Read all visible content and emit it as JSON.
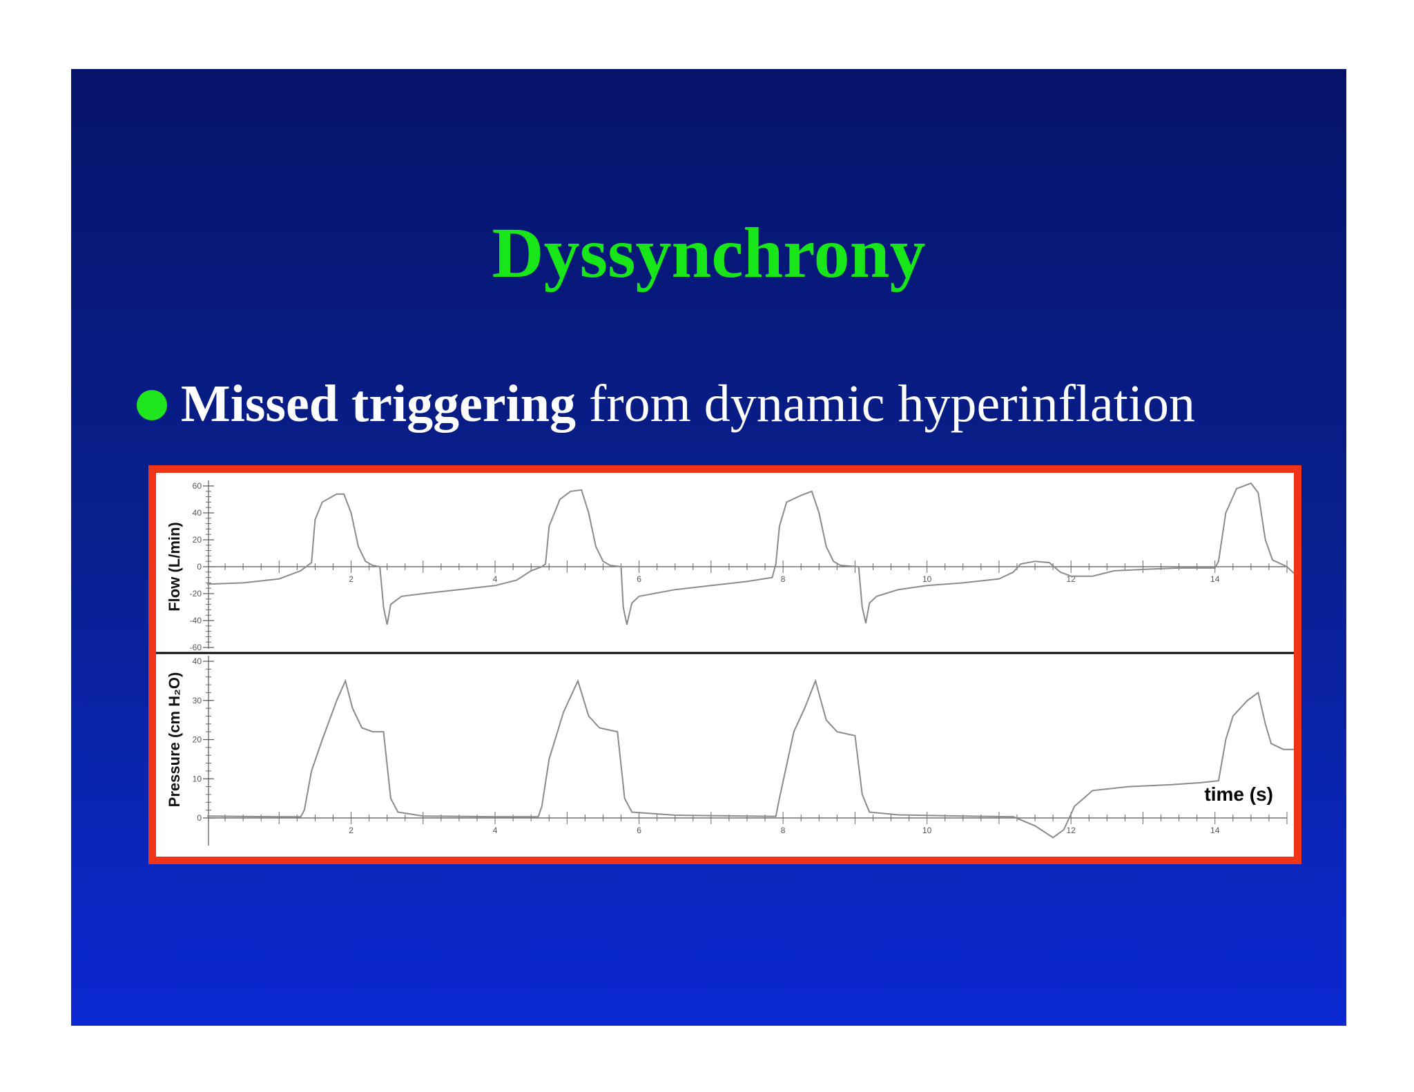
{
  "slide": {
    "title": "Dyssynchrony",
    "bullet": {
      "bold": "Missed triggering",
      "rest": " from dynamic hyperinflation"
    }
  },
  "colors": {
    "title": "#19e619",
    "bullet_dot": "#1fe61f",
    "frame_border": "#f03418",
    "trace": "#8a8a8a"
  },
  "chart_data": [
    {
      "type": "line",
      "ylabel": "Flow (L/min)",
      "ylim": [
        -60,
        60
      ],
      "xlim": [
        0,
        15
      ],
      "x_ticks": [
        "2",
        "4",
        "6",
        "8",
        "10",
        "12",
        "14"
      ],
      "y_ticks": [
        "60",
        "40",
        "20",
        "0",
        "-20",
        "-40",
        "-60"
      ],
      "series": [
        {
          "points": [
            [
              0.0,
              -13
            ],
            [
              0.5,
              -12
            ],
            [
              1.0,
              -9
            ],
            [
              1.3,
              -3
            ],
            [
              1.45,
              3
            ],
            [
              1.5,
              35
            ],
            [
              1.6,
              48
            ],
            [
              1.8,
              54
            ],
            [
              1.9,
              54
            ],
            [
              2.0,
              40
            ],
            [
              2.1,
              15
            ],
            [
              2.2,
              4
            ],
            [
              2.3,
              1
            ],
            [
              2.4,
              0
            ],
            [
              2.45,
              -30
            ],
            [
              2.5,
              -43
            ],
            [
              2.55,
              -28
            ],
            [
              2.7,
              -22
            ],
            [
              3.0,
              -20
            ],
            [
              3.5,
              -17
            ],
            [
              4.0,
              -14
            ],
            [
              4.3,
              -10
            ],
            [
              4.5,
              -3
            ],
            [
              4.65,
              0
            ],
            [
              4.7,
              2
            ],
            [
              4.75,
              30
            ],
            [
              4.9,
              50
            ],
            [
              5.05,
              56
            ],
            [
              5.2,
              57
            ],
            [
              5.3,
              40
            ],
            [
              5.4,
              15
            ],
            [
              5.5,
              4
            ],
            [
              5.6,
              1
            ],
            [
              5.75,
              0
            ],
            [
              5.78,
              -30
            ],
            [
              5.83,
              -43
            ],
            [
              5.9,
              -27
            ],
            [
              6.0,
              -22
            ],
            [
              6.5,
              -17
            ],
            [
              7.0,
              -14
            ],
            [
              7.5,
              -11
            ],
            [
              7.85,
              -8
            ],
            [
              7.9,
              2
            ],
            [
              7.95,
              30
            ],
            [
              8.05,
              48
            ],
            [
              8.25,
              53
            ],
            [
              8.4,
              56
            ],
            [
              8.5,
              40
            ],
            [
              8.6,
              15
            ],
            [
              8.7,
              4
            ],
            [
              8.8,
              1
            ],
            [
              9.05,
              0
            ],
            [
              9.1,
              -30
            ],
            [
              9.15,
              -42
            ],
            [
              9.2,
              -27
            ],
            [
              9.3,
              -22
            ],
            [
              9.6,
              -17
            ],
            [
              10.0,
              -14
            ],
            [
              10.5,
              -12
            ],
            [
              11.0,
              -9
            ],
            [
              11.2,
              -4
            ],
            [
              11.3,
              2
            ],
            [
              11.5,
              4
            ],
            [
              11.7,
              3
            ],
            [
              11.85,
              -4
            ],
            [
              12.0,
              -7
            ],
            [
              12.3,
              -7
            ],
            [
              12.6,
              -3
            ],
            [
              13.0,
              -2
            ],
            [
              13.5,
              -1
            ],
            [
              14.0,
              -1
            ],
            [
              14.05,
              4
            ],
            [
              14.15,
              40
            ],
            [
              14.3,
              58
            ],
            [
              14.5,
              62
            ],
            [
              14.6,
              55
            ],
            [
              14.7,
              20
            ],
            [
              14.8,
              5
            ],
            [
              15.0,
              0
            ],
            [
              15.1,
              -5
            ]
          ]
        }
      ]
    },
    {
      "type": "line",
      "ylabel": "Pressure (cm H₂O)",
      "xlabel": "time (s)",
      "ylim": [
        0,
        40
      ],
      "xlim": [
        0,
        15
      ],
      "x_ticks": [
        "2",
        "4",
        "6",
        "8",
        "10",
        "12",
        "14"
      ],
      "y_ticks": [
        "40",
        "30",
        "20",
        "10",
        "0"
      ],
      "series": [
        {
          "points": [
            [
              0.0,
              0.5
            ],
            [
              1.0,
              0.3
            ],
            [
              1.3,
              0.3
            ],
            [
              1.35,
              2
            ],
            [
              1.45,
              12
            ],
            [
              1.6,
              20
            ],
            [
              1.8,
              30
            ],
            [
              1.92,
              35
            ],
            [
              2.02,
              28
            ],
            [
              2.15,
              23
            ],
            [
              2.3,
              22
            ],
            [
              2.45,
              22
            ],
            [
              2.55,
              5
            ],
            [
              2.65,
              1.5
            ],
            [
              3.0,
              0.5
            ],
            [
              4.0,
              0.3
            ],
            [
              4.6,
              0.3
            ],
            [
              4.65,
              3
            ],
            [
              4.75,
              15
            ],
            [
              4.95,
              27
            ],
            [
              5.15,
              35
            ],
            [
              5.3,
              26
            ],
            [
              5.45,
              23
            ],
            [
              5.7,
              22
            ],
            [
              5.8,
              5
            ],
            [
              5.9,
              1.5
            ],
            [
              6.5,
              0.7
            ],
            [
              7.5,
              0.5
            ],
            [
              7.9,
              0.4
            ],
            [
              7.95,
              5
            ],
            [
              8.15,
              22
            ],
            [
              8.3,
              28
            ],
            [
              8.45,
              35
            ],
            [
              8.6,
              25
            ],
            [
              8.75,
              22
            ],
            [
              9.0,
              21
            ],
            [
              9.1,
              6
            ],
            [
              9.2,
              1.5
            ],
            [
              9.6,
              0.8
            ],
            [
              10.5,
              0.5
            ],
            [
              11.2,
              0.3
            ],
            [
              11.5,
              -2
            ],
            [
              11.75,
              -5
            ],
            [
              11.9,
              -3
            ],
            [
              12.05,
              3
            ],
            [
              12.3,
              7
            ],
            [
              12.8,
              8
            ],
            [
              13.4,
              8.5
            ],
            [
              13.8,
              9
            ],
            [
              14.05,
              9.5
            ],
            [
              14.15,
              20
            ],
            [
              14.25,
              26
            ],
            [
              14.45,
              30
            ],
            [
              14.6,
              32
            ],
            [
              14.7,
              24
            ],
            [
              14.78,
              19
            ],
            [
              14.95,
              17.5
            ],
            [
              15.1,
              17.5
            ]
          ]
        }
      ]
    }
  ]
}
